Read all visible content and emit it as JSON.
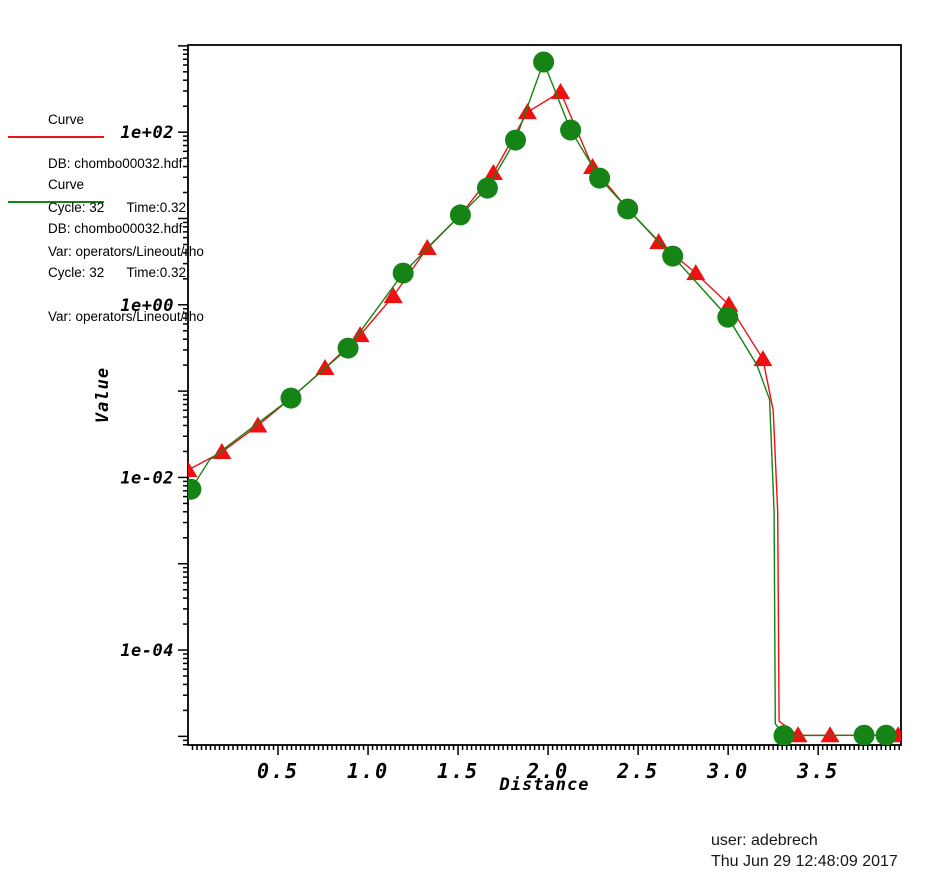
{
  "colors": {
    "background": "#ffffff",
    "axis": "#000000",
    "text": "#000000",
    "red_curve": "#ee1111",
    "green_curve": "#168316"
  },
  "legend": {
    "blocks": [
      {
        "title": "Curve",
        "db": "DB: chombo00032.hdf",
        "cycle_time": "Cycle: 32      Time:0.32",
        "var": "Var: operators/Lineout/rho",
        "color": "#ee1111"
      },
      {
        "title": "Curve",
        "db": "DB: chombo00032.hdf",
        "cycle_time": "Cycle: 32      Time:0.32",
        "var": "Var: operators/Lineout/rho",
        "color": "#168316"
      }
    ]
  },
  "footer": {
    "user_line": "user: adebrech",
    "date_line": "Thu Jun 29 12:48:09 2017"
  },
  "chart_data": {
    "type": "line",
    "title": "",
    "xlabel": "Distance",
    "ylabel": "Value",
    "grid": false,
    "x_axis": {
      "min": 0,
      "max": 3.96,
      "minor_step": 0.025,
      "major_step": 0.5,
      "ticks": [
        {
          "v": 0.5,
          "label": "0.5"
        },
        {
          "v": 1.0,
          "label": "1.0"
        },
        {
          "v": 1.5,
          "label": "1.5"
        },
        {
          "v": 2.0,
          "label": "2.0"
        },
        {
          "v": 2.5,
          "label": "2.5"
        },
        {
          "v": 3.0,
          "label": "3.0"
        },
        {
          "v": 3.5,
          "label": "3.5"
        }
      ]
    },
    "y_axis": {
      "scale": "log",
      "min_log": -5.1,
      "max_log": 3.01,
      "major_decades": [
        3,
        2,
        1,
        0,
        -1,
        -2,
        -3,
        -4,
        -5
      ],
      "labeled_ticks": [
        {
          "log": 2,
          "label": "1e+02"
        },
        {
          "log": 0,
          "label": "1e+00"
        },
        {
          "log": -2,
          "label": "1e-02"
        },
        {
          "log": -4,
          "label": "1e-04"
        }
      ]
    },
    "series": [
      {
        "name": "operators/Lineout/rho",
        "db": "chombo00032.hdf",
        "cycle": 32,
        "time": 0.32,
        "color": "#ee1111",
        "marker": "triangle-up",
        "points": [
          [
            0.0,
            0.0122
          ],
          [
            0.188,
            0.0197
          ],
          [
            0.388,
            0.04
          ],
          [
            0.572,
            0.083
          ],
          [
            0.761,
            0.185
          ],
          [
            0.956,
            0.446
          ],
          [
            1.14,
            1.26
          ],
          [
            1.329,
            4.55
          ],
          [
            1.513,
            11.0
          ],
          [
            1.696,
            33.6
          ],
          [
            1.885,
            171
          ],
          [
            2.069,
            292
          ],
          [
            2.247,
            39.5
          ],
          [
            2.442,
            12.9
          ],
          [
            2.614,
            5.33
          ],
          [
            2.82,
            2.33
          ],
          [
            3.004,
            1.0
          ],
          [
            3.193,
            0.235
          ],
          [
            3.25,
            0.06
          ],
          [
            3.275,
            0.004
          ],
          [
            3.283,
            1.5e-05
          ],
          [
            3.388,
            1.03e-05
          ],
          [
            3.566,
            1.03e-05
          ],
          [
            3.944,
            1.03e-05
          ]
        ],
        "marker_points": [
          [
            0.0,
            0.0122
          ],
          [
            0.188,
            0.0197
          ],
          [
            0.388,
            0.04
          ],
          [
            0.761,
            0.185
          ],
          [
            0.956,
            0.446
          ],
          [
            1.14,
            1.26
          ],
          [
            1.329,
            4.55
          ],
          [
            1.696,
            33.6
          ],
          [
            1.885,
            171
          ],
          [
            2.069,
            292
          ],
          [
            2.247,
            39.5
          ],
          [
            2.614,
            5.33
          ],
          [
            2.82,
            2.33
          ],
          [
            3.004,
            1.0
          ],
          [
            3.193,
            0.235
          ],
          [
            3.388,
            1.03e-05
          ],
          [
            3.566,
            1.03e-05
          ],
          [
            3.944,
            1.03e-05
          ]
        ]
      },
      {
        "name": "operators/Lineout/rho",
        "db": "chombo00032.hdf",
        "cycle": 32,
        "time": 0.32,
        "color": "#168316",
        "marker": "circle",
        "points": [
          [
            0.016,
            0.0073
          ],
          [
            0.12,
            0.016
          ],
          [
            0.572,
            0.083
          ],
          [
            0.889,
            0.315
          ],
          [
            1.195,
            2.33
          ],
          [
            1.513,
            11.0
          ],
          [
            1.663,
            22.5
          ],
          [
            1.819,
            81
          ],
          [
            1.975,
            650
          ],
          [
            2.125,
            106
          ],
          [
            2.286,
            29.4
          ],
          [
            2.442,
            12.9
          ],
          [
            2.692,
            3.67
          ],
          [
            2.998,
            0.72
          ],
          [
            3.16,
            0.2
          ],
          [
            3.23,
            0.08
          ],
          [
            3.255,
            0.004
          ],
          [
            3.262,
            1.4e-05
          ],
          [
            3.31,
            1.02e-05
          ],
          [
            3.755,
            1.03e-05
          ],
          [
            3.877,
            1.03e-05
          ]
        ],
        "marker_points": [
          [
            0.016,
            0.0073
          ],
          [
            0.572,
            0.083
          ],
          [
            0.889,
            0.315
          ],
          [
            1.195,
            2.33
          ],
          [
            1.513,
            11.0
          ],
          [
            1.663,
            22.5
          ],
          [
            1.819,
            81
          ],
          [
            1.975,
            650
          ],
          [
            2.125,
            106
          ],
          [
            2.286,
            29.4
          ],
          [
            2.442,
            12.9
          ],
          [
            2.692,
            3.67
          ],
          [
            2.998,
            0.72
          ],
          [
            3.31,
            1.02e-05
          ],
          [
            3.755,
            1.03e-05
          ],
          [
            3.877,
            1.03e-05
          ]
        ]
      }
    ]
  }
}
